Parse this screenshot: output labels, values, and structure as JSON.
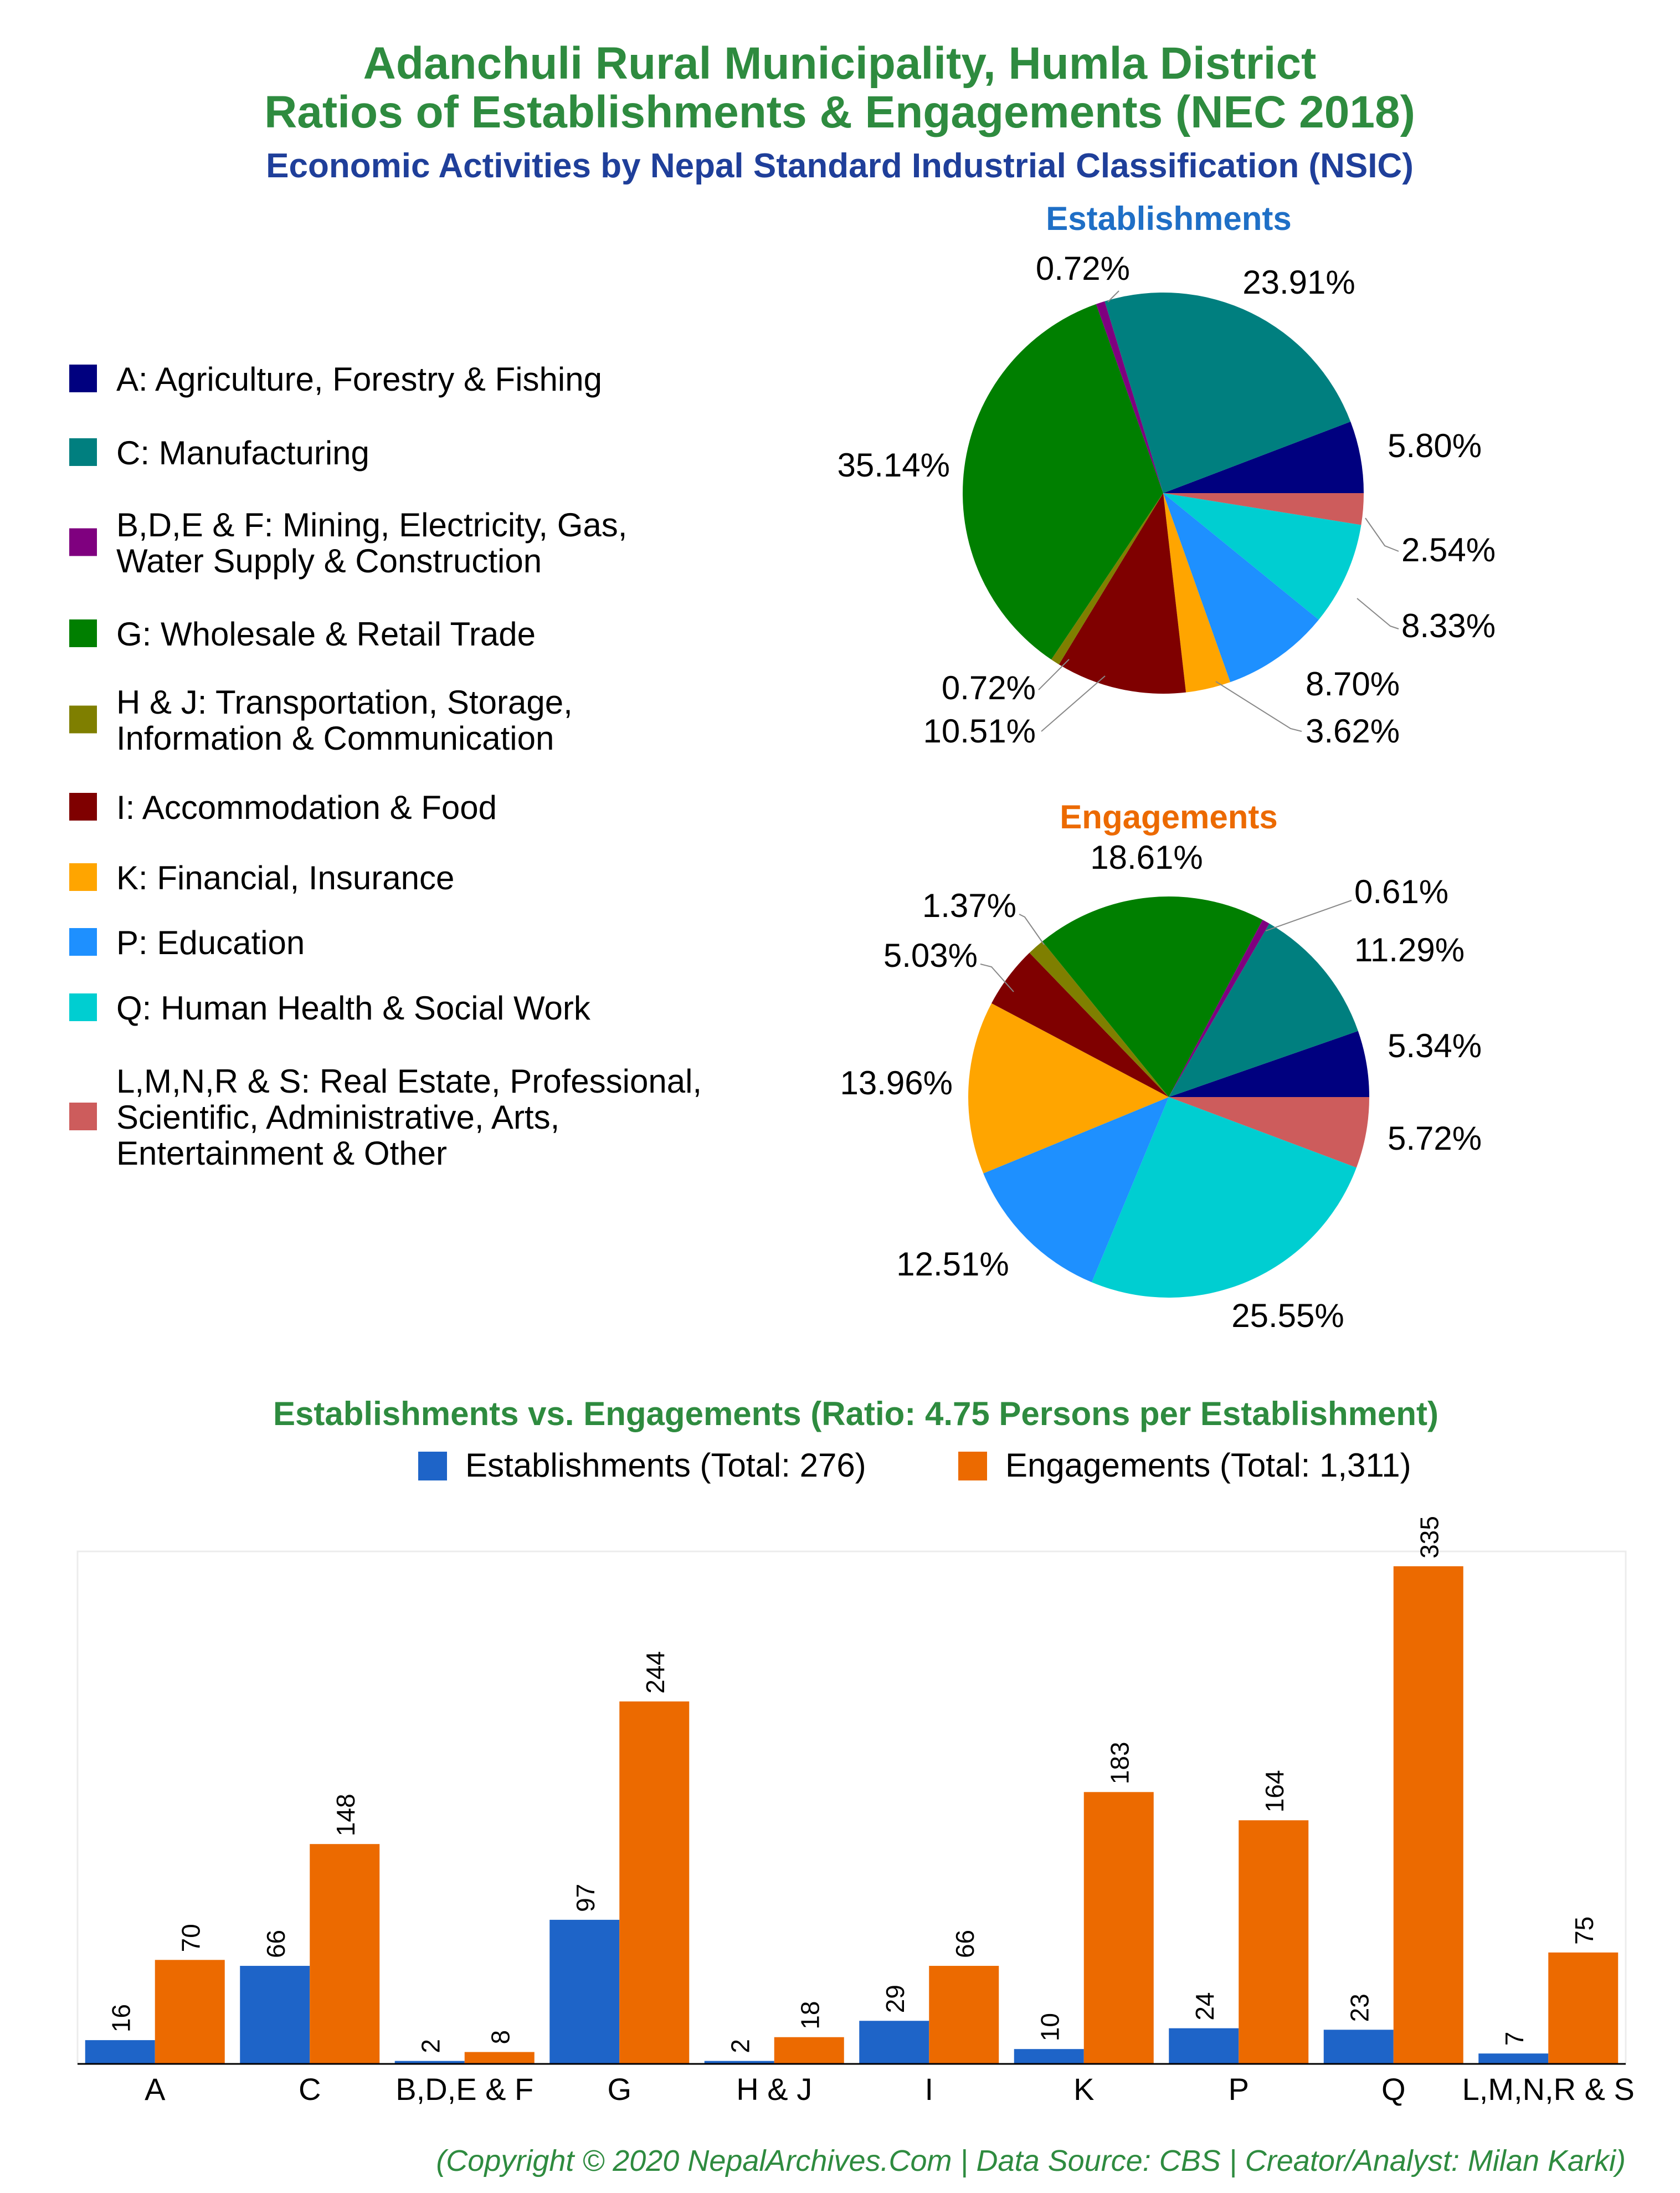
{
  "header": {
    "title_line1": "Adanchuli Rural Municipality, Humla District",
    "title_line2": "Ratios of Establishments & Engagements (NEC 2018)",
    "subtitle": "Economic Activities by Nepal Standard Industrial Classification (NSIC)"
  },
  "colors": {
    "title_green": "#2e8b3f",
    "subtitle_blue": "#1f3f9a",
    "est_blue": "#1e64c8",
    "eng_orange": "#ec6a00",
    "pie_title_blue": "#1f6fc6",
    "pie_title_orange": "#ec6a00"
  },
  "legend": {
    "items": [
      {
        "label_lines": [
          "A: Agriculture, Forestry & Fishing"
        ],
        "color": "#00007f"
      },
      {
        "label_lines": [
          "C: Manufacturing"
        ],
        "color": "#007f7f"
      },
      {
        "label_lines": [
          "B,D,E & F: Mining, Electricity, Gas,",
          "Water Supply & Construction"
        ],
        "color": "#7f007f"
      },
      {
        "label_lines": [
          "G: Wholesale & Retail Trade"
        ],
        "color": "#007f00"
      },
      {
        "label_lines": [
          "H & J: Transportation, Storage,",
          "Information & Communication"
        ],
        "color": "#7f7f00"
      },
      {
        "label_lines": [
          "I: Accommodation & Food"
        ],
        "color": "#7f0000"
      },
      {
        "label_lines": [
          "K: Financial, Insurance"
        ],
        "color": "#ffa500"
      },
      {
        "label_lines": [
          "P: Education"
        ],
        "color": "#1e90ff"
      },
      {
        "label_lines": [
          "Q: Human Health & Social Work"
        ],
        "color": "#00ced1"
      },
      {
        "label_lines": [
          "L,M,N,R & S: Real Estate, Professional,",
          "Scientific, Administrative, Arts,",
          "Entertainment & Other"
        ],
        "color": "#cd5c5c"
      }
    ]
  },
  "chart_data": [
    {
      "type": "pie",
      "title": "Establishments",
      "slices": [
        {
          "key": "A",
          "value": 5.8,
          "label": "5.80%"
        },
        {
          "key": "L,M,N,R & S",
          "value": 2.54,
          "label": "2.54%"
        },
        {
          "key": "Q",
          "value": 8.33,
          "label": "8.33%"
        },
        {
          "key": "P",
          "value": 8.7,
          "label": "8.70%"
        },
        {
          "key": "K",
          "value": 3.62,
          "label": "3.62%"
        },
        {
          "key": "I",
          "value": 10.51,
          "label": "10.51%"
        },
        {
          "key": "H & J",
          "value": 0.72,
          "label": "0.72%"
        },
        {
          "key": "G",
          "value": 35.14,
          "label": "35.14%"
        },
        {
          "key": "B,D,E & F",
          "value": 0.72,
          "label": "0.72%"
        },
        {
          "key": "C",
          "value": 23.91,
          "label": "23.91%"
        }
      ]
    },
    {
      "type": "pie",
      "title": "Engagements",
      "slices": [
        {
          "key": "A",
          "value": 5.34,
          "label": "5.34%"
        },
        {
          "key": "L,M,N,R & S",
          "value": 5.72,
          "label": "5.72%"
        },
        {
          "key": "Q",
          "value": 25.55,
          "label": "25.55%"
        },
        {
          "key": "P",
          "value": 12.51,
          "label": "12.51%"
        },
        {
          "key": "K",
          "value": 13.96,
          "label": "13.96%"
        },
        {
          "key": "I",
          "value": 5.03,
          "label": "5.03%"
        },
        {
          "key": "H & J",
          "value": 1.37,
          "label": "1.37%"
        },
        {
          "key": "G",
          "value": 18.61,
          "label": "18.61%"
        },
        {
          "key": "B,D,E & F",
          "value": 0.61,
          "label": "0.61%"
        },
        {
          "key": "C",
          "value": 11.29,
          "label": "11.29%"
        }
      ]
    },
    {
      "type": "bar",
      "title": "Establishments vs. Engagements (Ratio: 4.75 Persons per Establishment)",
      "categories": [
        "A",
        "C",
        "B,D,E & F",
        "G",
        "H & J",
        "I",
        "K",
        "P",
        "Q",
        "L,M,N,R & S"
      ],
      "series": [
        {
          "name": "Establishments (Total: 276)",
          "values": [
            16,
            66,
            2,
            97,
            2,
            29,
            10,
            24,
            23,
            7
          ]
        },
        {
          "name": "Engagements (Total: 1,311)",
          "values": [
            70,
            148,
            8,
            244,
            18,
            66,
            183,
            164,
            335,
            75
          ]
        }
      ],
      "ylim": [
        0,
        345
      ],
      "grid": false,
      "legend_position": "top-right"
    }
  ],
  "footer": "(Copyright © 2020 NepalArchives.Com | Data Source: CBS | Creator/Analyst: Milan Karki)"
}
